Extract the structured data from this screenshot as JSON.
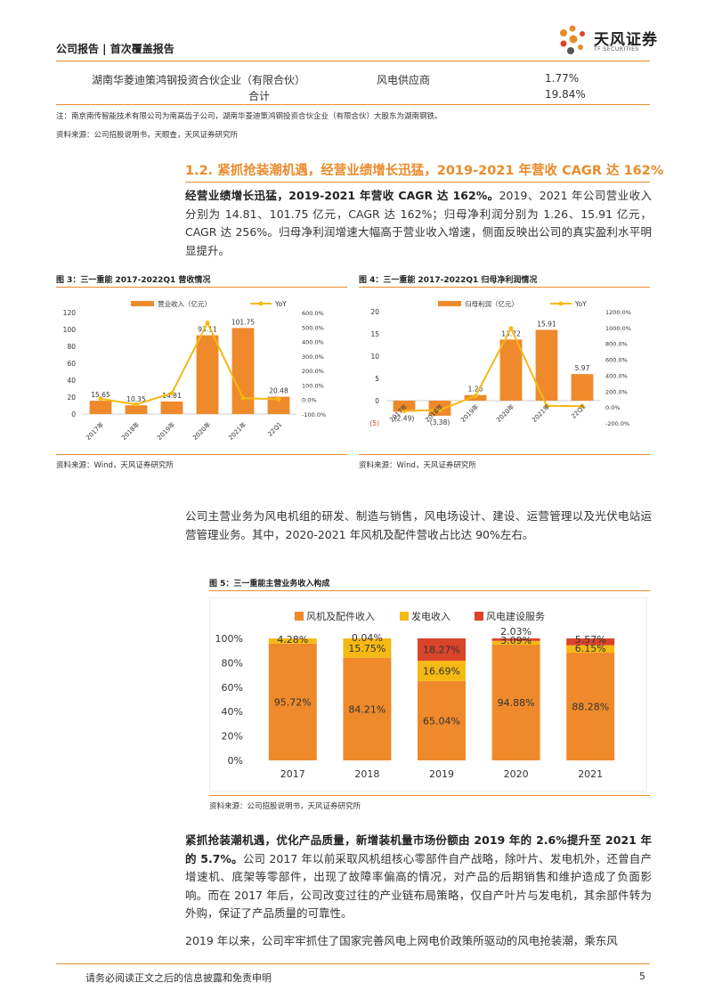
{
  "header": {
    "label": "公司报告 | 首次覆盖报告",
    "logo_name": "天风证券",
    "logo_sub": "TF SECURITIES",
    "logo_icon": "tf-logo-icon"
  },
  "table": {
    "rows": [
      {
        "name": "湖南华菱迪策鸿钢投资合伙企业（有限合伙）",
        "type": "风电供应商",
        "pct": "1.77%"
      },
      {
        "name": "合计",
        "type": "",
        "pct": "19.84%"
      }
    ]
  },
  "notes": {
    "note1": "注：南京南传智能技术有限公司为南高齿子公司，湖南华菱迪策鸿钢投资合伙企业（有限合伙）大股东为湖南钢铁。",
    "source1": "资料来源：公司招股说明书，天眼查，天风证券研究所"
  },
  "section": {
    "title": "1.2. 紧抓抢装潮机遇，经营业绩增长迅猛，2019-2021 年营收 CAGR 达 162%"
  },
  "para1": {
    "bold": "经营业绩增长迅猛，2019-2021 年营收 CAGR 达 162%。",
    "text": "2019、2021 年公司营业收入分别为 14.81、101.75 亿元，CAGR 达 162%；归母净利润分别为 1.26、15.91 亿元，CAGR 达 256%。归母净利润增速大幅高于营业收入增速，侧面反映出公司的真实盈利水平明显提升。"
  },
  "fig3": {
    "title": "图 3：三一重能 2017-2022Q1 营收情况",
    "source": "资料来源：Wind，天风证券研究所"
  },
  "fig4": {
    "title": "图 4：三一重能 2017-2022Q1 归母净利润情况",
    "source": "资料来源：Wind，天风证券研究所"
  },
  "para2": {
    "text": "公司主营业务为风电机组的研发、制造与销售，风电场设计、建设、运营管理以及光伏电站运营管理业务。其中，2020-2021 年风机及配件营收占比达 90%左右。"
  },
  "fig5": {
    "title": "图 5：三一重能主营业务收入构成",
    "source": "资料来源：公司招股说明书，天风证券研究所"
  },
  "para3": {
    "bold": "紧抓抢装潮机遇，优化产品质量，新增装机量市场份额由 2019 年的 2.6%提升至 2021 年的 5.7%。",
    "text": "公司 2017 年以前采取风机组核心零部件自产战略，除叶片、发电机外，还曾自产增速机、底架等零部件，出现了故障率偏高的情况，对产品的后期销售和维护造成了负面影响。而在 2017 年后，公司改变过往的产业链布局策略，仅自产叶片与发电机，其余部件转为外购，保证了产品质量的可靠性。"
  },
  "para4": {
    "text": "2019 年以来，公司牢牢抓住了国家完善风电上网电价政策所驱动的风电抢装潮，乘东风"
  },
  "footer": {
    "text": "请务必阅读正文之后的信息披露和免责申明",
    "page": "5"
  },
  "chart_data": [
    {
      "type": "bar",
      "id": "fig3",
      "categories": [
        "2017年",
        "2018年",
        "2019年",
        "2020年",
        "2021年",
        "22Q1"
      ],
      "series": [
        {
          "name": "营业收入（亿元）",
          "type": "bar",
          "values": [
            15.65,
            10.35,
            14.81,
            93.11,
            101.75,
            20.48
          ],
          "labels": [
            "15.65",
            "10.35",
            "14.81",
            "93.11",
            "101.75",
            "20.48"
          ],
          "color": "#ee8a2c"
        },
        {
          "name": "YoY",
          "type": "line",
          "axis": "right",
          "values": [
            5,
            -34,
            43,
            529,
            9,
            2
          ],
          "color": "#f5b915"
        }
      ],
      "ylim": [
        0,
        120
      ],
      "yticks": [
        "0",
        "20",
        "40",
        "60",
        "80",
        "100",
        "120"
      ],
      "y2lim": [
        -100,
        600
      ],
      "y2ticks": [
        "-100.0%",
        "0.0%",
        "100.0%",
        "200.0%",
        "300.0%",
        "400.0%",
        "500.0%",
        "600.0%"
      ],
      "legend": "top"
    },
    {
      "type": "bar",
      "id": "fig4",
      "categories": [
        "2017年",
        "2018年",
        "2019年",
        "2020年",
        "2021年",
        "22Q1"
      ],
      "series": [
        {
          "name": "归母利润（亿元）",
          "type": "bar",
          "values": [
            -2.49,
            -3.38,
            1.26,
            13.72,
            15.91,
            5.97
          ],
          "labels": [
            "(2.49)",
            "(3.38)",
            "1.26",
            "13.72",
            "15.91",
            "5.97"
          ],
          "color": "#ee8a2c"
        },
        {
          "name": "YoY",
          "type": "line",
          "axis": "right",
          "values": [
            -50,
            -36,
            137,
            989,
            16,
            10
          ],
          "color": "#f5b915"
        }
      ],
      "ylim": [
        -5,
        20
      ],
      "yticks": [
        "(5)",
        "0",
        "5",
        "10",
        "15",
        "20"
      ],
      "y2lim": [
        -200,
        1200
      ],
      "y2ticks": [
        "-200.0%",
        "0.0%",
        "200.0%",
        "400.0%",
        "600.0%",
        "800.0%",
        "1000.0%",
        "1200.0%"
      ],
      "legend": "top"
    },
    {
      "type": "bar",
      "id": "fig5",
      "stacked": true,
      "categories": [
        "2017",
        "2018",
        "2019",
        "2020",
        "2021"
      ],
      "series": [
        {
          "name": "风机及配件收入",
          "values": [
            95.72,
            84.21,
            65.04,
            94.88,
            88.28
          ],
          "labels": [
            "95.72%",
            "84.21%",
            "65.04%",
            "94.88%",
            "88.28%"
          ],
          "color": "#ee8a2c"
        },
        {
          "name": "发电收入",
          "values": [
            4.28,
            15.75,
            16.69,
            3.09,
            6.15
          ],
          "labels": [
            "4.28%",
            "15.75%",
            "16.69%",
            "3.09%",
            "6.15%"
          ],
          "color": "#f5b915"
        },
        {
          "name": "风电建设服务",
          "values": [
            0,
            0.04,
            18.27,
            2.03,
            5.57
          ],
          "labels": [
            "",
            "0.04%",
            "18.27%",
            "2.03%",
            "5.57%"
          ],
          "color": "#d9442b"
        }
      ],
      "ylim": [
        0,
        100
      ],
      "yticks": [
        "0%",
        "20%",
        "40%",
        "60%",
        "80%",
        "100%"
      ],
      "legend": "top-left"
    }
  ]
}
